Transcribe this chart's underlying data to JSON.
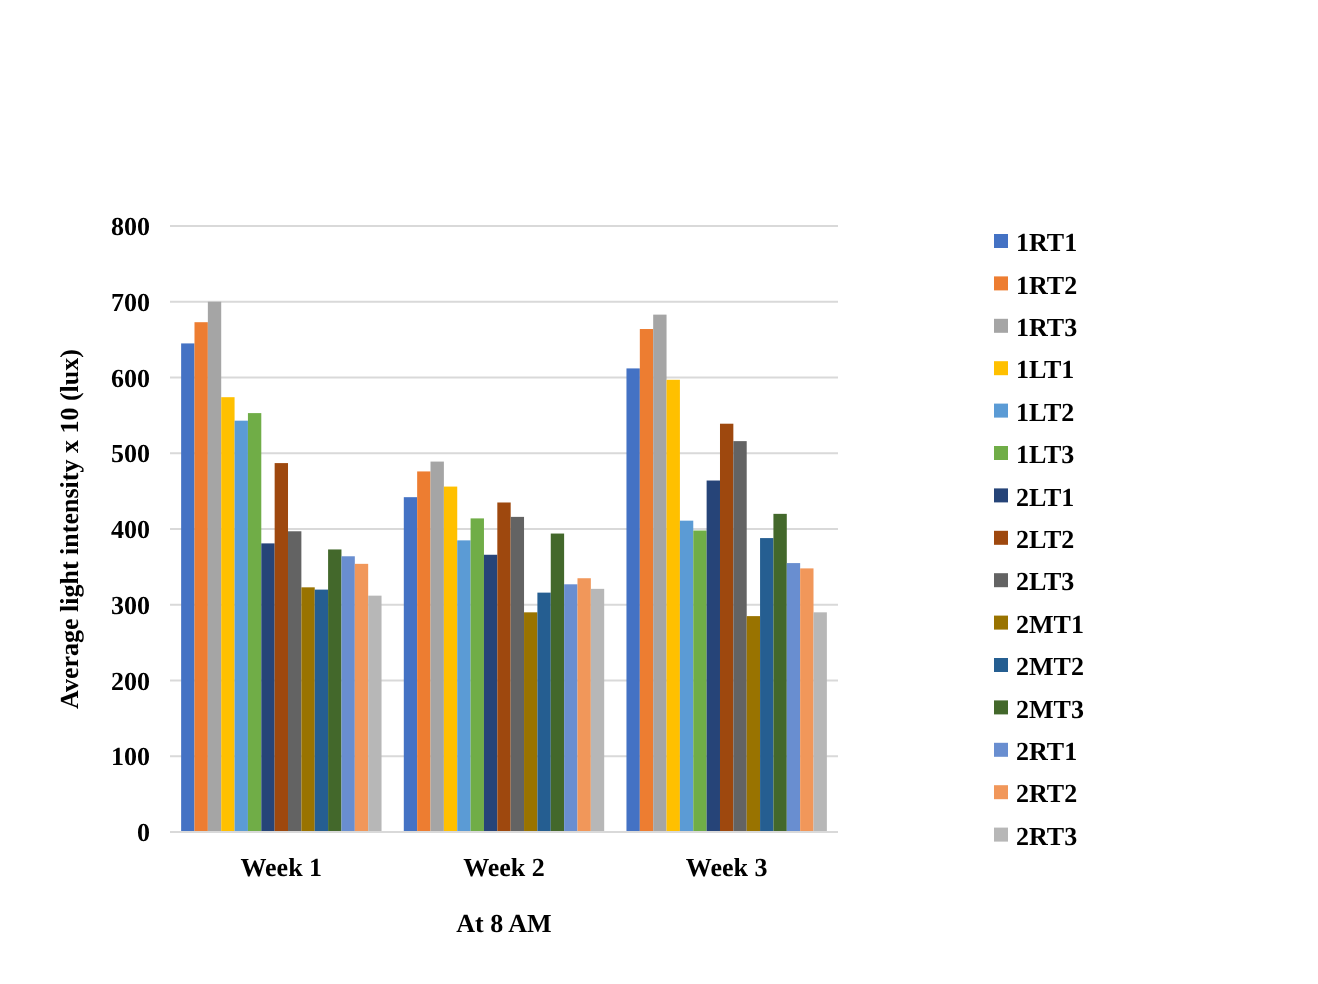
{
  "chart_data": {
    "type": "bar",
    "xlabel": "At 8 AM",
    "ylabel": "Average light intensity x 10 (lux)",
    "categories": [
      "Week 1",
      "Week 2",
      "Week 3"
    ],
    "series": [
      {
        "name": "1RT1",
        "color": "#4472c4",
        "values": [
          645,
          442,
          612
        ]
      },
      {
        "name": "1RT2",
        "color": "#ed7d31",
        "values": [
          673,
          476,
          664
        ]
      },
      {
        "name": "1RT3",
        "color": "#a5a5a5",
        "values": [
          700,
          489,
          683
        ]
      },
      {
        "name": "1LT1",
        "color": "#ffc000",
        "values": [
          574,
          456,
          597
        ]
      },
      {
        "name": "1LT2",
        "color": "#5b9bd5",
        "values": [
          543,
          385,
          411
        ]
      },
      {
        "name": "1LT3",
        "color": "#70ad47",
        "values": [
          553,
          414,
          398
        ]
      },
      {
        "name": "2LT1",
        "color": "#264478",
        "values": [
          381,
          366,
          464
        ]
      },
      {
        "name": "2LT2",
        "color": "#9e480e",
        "values": [
          487,
          435,
          539
        ]
      },
      {
        "name": "2LT3",
        "color": "#636363",
        "values": [
          397,
          416,
          516
        ]
      },
      {
        "name": "2MT1",
        "color": "#997300",
        "values": [
          323,
          290,
          285
        ]
      },
      {
        "name": "2MT2",
        "color": "#255e91",
        "values": [
          320,
          316,
          388
        ]
      },
      {
        "name": "2MT3",
        "color": "#43682b",
        "values": [
          373,
          394,
          420
        ]
      },
      {
        "name": "2RT1",
        "color": "#698ed0",
        "values": [
          364,
          327,
          355
        ]
      },
      {
        "name": "2RT2",
        "color": "#f1975a",
        "values": [
          354,
          335,
          348
        ]
      },
      {
        "name": "2RT3",
        "color": "#b7b7b7",
        "values": [
          312,
          321,
          290
        ]
      }
    ],
    "ylim": [
      0,
      800
    ],
    "yticks": [
      0,
      100,
      200,
      300,
      400,
      500,
      600,
      700,
      800
    ],
    "grid": "y",
    "legend": "right"
  }
}
